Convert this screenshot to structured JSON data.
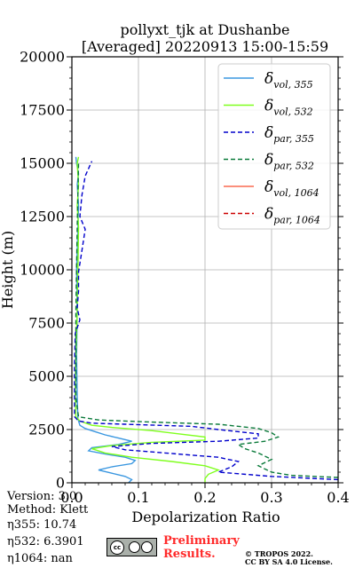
{
  "chart_data": {
    "type": "line",
    "title": "pollyxt_tjk at Dushanbe",
    "subtitle": "[Averaged] 20220913 15:00-15:59",
    "xlabel": "Depolarization Ratio",
    "ylabel": "Height (m)",
    "xlim": [
      0.0,
      0.4
    ],
    "ylim": [
      0,
      20000
    ],
    "x_ticks": [
      "0.0",
      "0.1",
      "0.2",
      "0.3",
      "0.4"
    ],
    "y_ticks": [
      "0",
      "2500",
      "5000",
      "7500",
      "10000",
      "12500",
      "15000",
      "17500",
      "20000"
    ],
    "grid": true,
    "legend_position": "top-right",
    "series": [
      {
        "name": "δvol,355",
        "color": "#3a97e0",
        "dash": "solid",
        "points": [
          [
            0.085,
            0
          ],
          [
            0.09,
            150
          ],
          [
            0.08,
            300
          ],
          [
            0.06,
            450
          ],
          [
            0.04,
            600
          ],
          [
            0.06,
            750
          ],
          [
            0.09,
            900
          ],
          [
            0.095,
            1050
          ],
          [
            0.08,
            1200
          ],
          [
            0.05,
            1350
          ],
          [
            0.025,
            1500
          ],
          [
            0.03,
            1650
          ],
          [
            0.07,
            1800
          ],
          [
            0.09,
            1950
          ],
          [
            0.07,
            2100
          ],
          [
            0.05,
            2250
          ],
          [
            0.035,
            2400
          ],
          [
            0.02,
            2550
          ],
          [
            0.012,
            2700
          ],
          [
            0.009,
            3000
          ],
          [
            0.008,
            4000
          ],
          [
            0.007,
            6000
          ],
          [
            0.008,
            8000
          ],
          [
            0.007,
            10000
          ],
          [
            0.009,
            12000
          ],
          [
            0.01,
            13000
          ],
          [
            0.008,
            14000
          ],
          [
            0.01,
            14500
          ],
          [
            0.007,
            15000
          ],
          [
            0.006,
            15300
          ]
        ]
      },
      {
        "name": "δvol,532",
        "color": "#7fff1e",
        "dash": "solid",
        "points": [
          [
            0.2,
            0
          ],
          [
            0.2,
            200
          ],
          [
            0.205,
            400
          ],
          [
            0.22,
            600
          ],
          [
            0.2,
            800
          ],
          [
            0.15,
            1000
          ],
          [
            0.09,
            1200
          ],
          [
            0.05,
            1400
          ],
          [
            0.03,
            1600
          ],
          [
            0.06,
            1750
          ],
          [
            0.12,
            1900
          ],
          [
            0.2,
            2000
          ],
          [
            0.2,
            2150
          ],
          [
            0.16,
            2300
          ],
          [
            0.12,
            2450
          ],
          [
            0.06,
            2600
          ],
          [
            0.03,
            2700
          ],
          [
            0.012,
            2900
          ],
          [
            0.006,
            3100
          ],
          [
            0.005,
            4000
          ],
          [
            0.006,
            6000
          ],
          [
            0.008,
            8000
          ],
          [
            0.009,
            10000
          ],
          [
            0.01,
            12000
          ],
          [
            0.008,
            13000
          ],
          [
            0.01,
            14000
          ],
          [
            0.008,
            15000
          ],
          [
            0.01,
            15300
          ]
        ]
      },
      {
        "name": "δpar,355",
        "color": "#0000cc",
        "dash": "dashed",
        "points": [
          [
            0.4,
            150
          ],
          [
            0.3,
            300
          ],
          [
            0.22,
            500
          ],
          [
            0.24,
            750
          ],
          [
            0.25,
            1000
          ],
          [
            0.22,
            1200
          ],
          [
            0.14,
            1400
          ],
          [
            0.08,
            1550
          ],
          [
            0.06,
            1700
          ],
          [
            0.12,
            1850
          ],
          [
            0.22,
            1950
          ],
          [
            0.28,
            2100
          ],
          [
            0.28,
            2300
          ],
          [
            0.22,
            2500
          ],
          [
            0.18,
            2650
          ],
          [
            0.08,
            2750
          ],
          [
            0.03,
            2800
          ],
          [
            0.01,
            2900
          ],
          [
            0.004,
            3100
          ],
          [
            0.004,
            4000
          ],
          [
            0.004,
            5500
          ],
          [
            0.005,
            7000
          ],
          [
            0.012,
            7650
          ],
          [
            0.008,
            8200
          ],
          [
            0.01,
            9000
          ],
          [
            0.01,
            9900
          ],
          [
            0.015,
            10900
          ],
          [
            0.02,
            11900
          ],
          [
            0.012,
            12500
          ],
          [
            0.015,
            13500
          ],
          [
            0.02,
            14400
          ],
          [
            0.03,
            15100
          ]
        ]
      },
      {
        "name": "δpar,532",
        "color": "#0a7a3a",
        "dash": "dashed",
        "points": [
          [
            0.4,
            250
          ],
          [
            0.33,
            350
          ],
          [
            0.3,
            500
          ],
          [
            0.28,
            800
          ],
          [
            0.3,
            1100
          ],
          [
            0.28,
            1400
          ],
          [
            0.26,
            1600
          ],
          [
            0.25,
            1800
          ],
          [
            0.29,
            1950
          ],
          [
            0.31,
            2150
          ],
          [
            0.3,
            2350
          ],
          [
            0.28,
            2550
          ],
          [
            0.22,
            2750
          ],
          [
            0.12,
            2850
          ],
          [
            0.04,
            2950
          ],
          [
            0.01,
            3100
          ],
          [
            0.006,
            4000
          ],
          [
            0.006,
            8000
          ],
          [
            0.008,
            12000
          ],
          [
            0.01,
            15000
          ]
        ]
      },
      {
        "name": "δvol,1064",
        "color": "#fa6a50",
        "dash": "solid",
        "points": []
      },
      {
        "name": "δpar,1064",
        "color": "#cc0000",
        "dash": "dashed",
        "points": []
      }
    ]
  },
  "legend": [
    {
      "base": "δ",
      "sub": "vol, 355"
    },
    {
      "base": "δ",
      "sub": "vol, 532"
    },
    {
      "base": "δ",
      "sub": "par, 355"
    },
    {
      "base": "δ",
      "sub": "par, 532"
    },
    {
      "base": "δ",
      "sub": "vol, 1064"
    },
    {
      "base": "δ",
      "sub": "par, 1064"
    }
  ],
  "info": {
    "version": "Version: 3.0",
    "method": "Method: Klett",
    "eta355": "η355:  10.74",
    "eta532": "η532: 6.3901",
    "eta1064": "η1064:    nan"
  },
  "footer": {
    "preliminary_line1": "Preliminary",
    "preliminary_line2": "Results.",
    "license_line1": "© TROPOS 2022.",
    "license_line2": "CC BY SA 4.0 License.",
    "cc_badge": "cc"
  }
}
